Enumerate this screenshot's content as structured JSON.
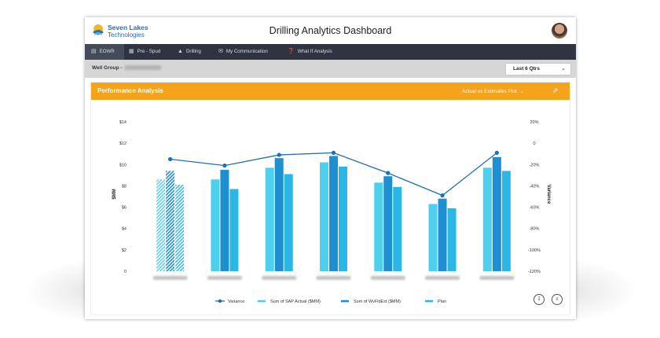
{
  "app": {
    "logo_line1": "Seven Lakes",
    "logo_line2": "Technologies",
    "title": "Drilling Analytics Dashboard"
  },
  "nav": {
    "items": [
      {
        "label": "EOWR",
        "icon": "chart-icon"
      },
      {
        "label": "Pre - Spud",
        "icon": "calendar-icon"
      },
      {
        "label": "Drilling",
        "icon": "rig-icon"
      },
      {
        "label": "My Communication",
        "icon": "mail-icon"
      },
      {
        "label": "What If Analysis",
        "icon": "question-icon"
      }
    ]
  },
  "filter": {
    "well_group_label": "Well Group -",
    "period_select": "Last 6 Qtrs"
  },
  "panel": {
    "title": "Performance Analysis",
    "plot_selector": "Actual vs Estimates Plot"
  },
  "colors": {
    "accent": "#f5a31a",
    "nav_bg": "#2f3440",
    "sap_actual": "#4dd0ee",
    "wvfldest": "#1e8fd0",
    "plan": "#2ab7e6",
    "variance": "#1e6fb5"
  },
  "chart_data": {
    "type": "bar",
    "categories": [
      "",
      "",
      "",
      "",
      "",
      "",
      ""
    ],
    "ylabel": "$MM",
    "y2label": "Variance",
    "ylim": [
      0,
      14
    ],
    "yticks": [
      "$14",
      "$12",
      "$10",
      "$8",
      "$6",
      "$4",
      "$2",
      "0"
    ],
    "y2lim": [
      -120,
      20
    ],
    "y2ticks": [
      "20%",
      "0",
      "-20%",
      "-40%",
      "-60%",
      "-80%",
      "-100%",
      "-120%"
    ],
    "legend_position": "bottom",
    "series": [
      {
        "name": "Sum of SAP Actual ($MM)",
        "values": [
          8.6,
          8.6,
          9.7,
          10.2,
          8.3,
          6.3,
          9.7
        ]
      },
      {
        "name": "Sum of WvFldEst ($MM)",
        "values": [
          9.4,
          9.5,
          10.6,
          10.8,
          8.9,
          6.8,
          10.7
        ]
      },
      {
        "name": "Plan",
        "values": [
          8.1,
          7.7,
          9.1,
          9.8,
          7.9,
          5.9,
          9.4
        ]
      },
      {
        "name": "Variance",
        "values": [
          -15,
          -21,
          -11,
          -9,
          -28,
          -49,
          -9
        ]
      }
    ]
  }
}
